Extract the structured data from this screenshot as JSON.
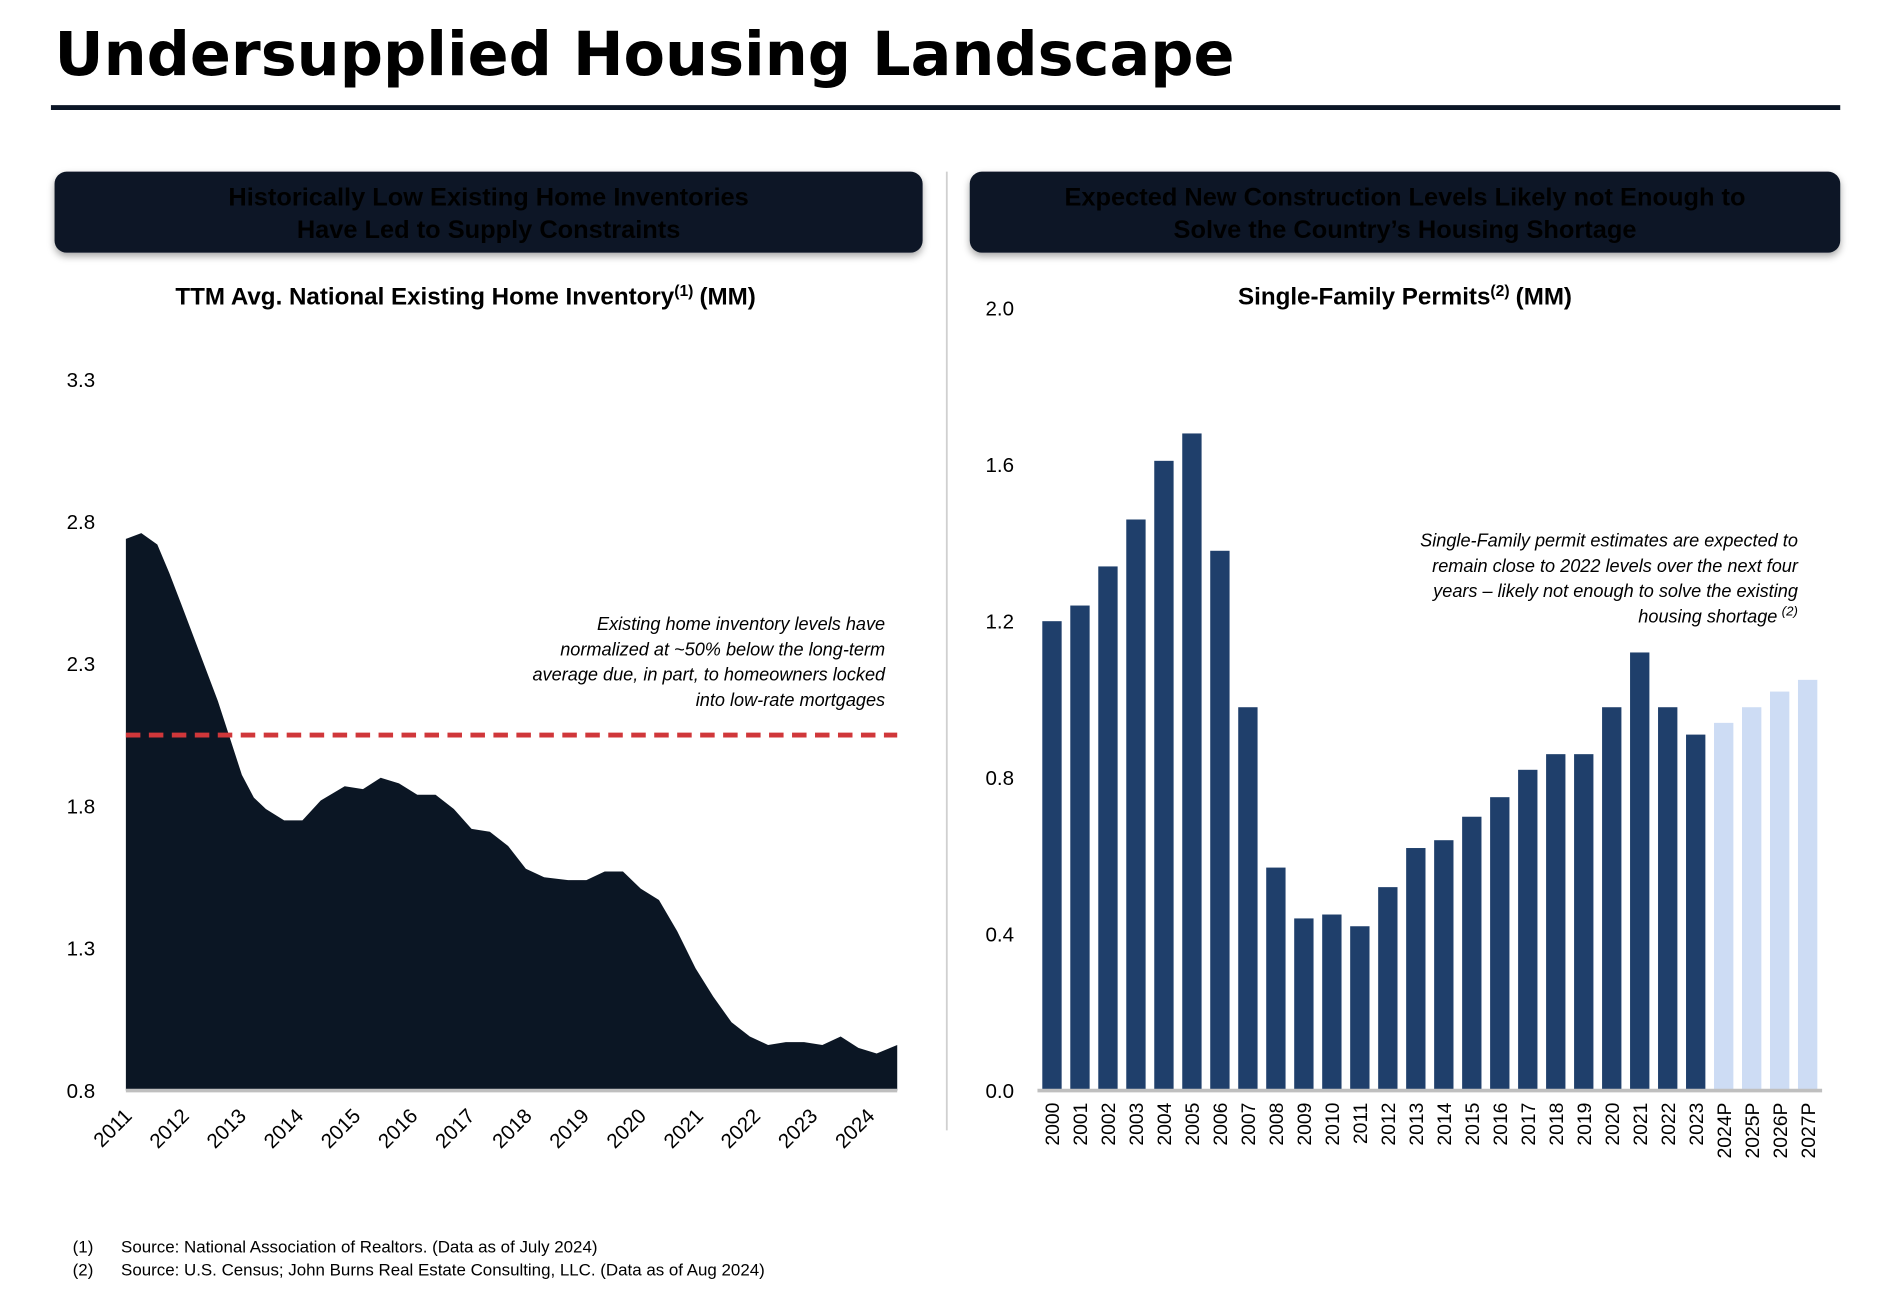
{
  "header": {
    "title": "Undersupplied Housing Landscape"
  },
  "panels": [
    {
      "heading": [
        "Historically Low Existing Home Inventories",
        "Have Led to Supply Constraints"
      ]
    },
    {
      "heading": [
        "Expected New Construction Levels Likely not Enough to",
        "Solve the Country’s Housing Shortage"
      ]
    }
  ],
  "chart_data": [
    {
      "type": "area",
      "title": "TTM Avg. National Existing Home Inventory",
      "title_note": "(1)",
      "title_unit": "(MM)",
      "x": [
        2011.0,
        2011.27,
        2011.55,
        2011.76,
        2011.97,
        2012.29,
        2012.61,
        2012.82,
        2013.03,
        2013.24,
        2013.45,
        2013.77,
        2014.09,
        2014.41,
        2014.83,
        2015.15,
        2015.46,
        2015.78,
        2016.1,
        2016.42,
        2016.74,
        2017.05,
        2017.37,
        2017.69,
        2018.0,
        2018.32,
        2018.74,
        2019.06,
        2019.38,
        2019.7,
        2020.01,
        2020.33,
        2020.65,
        2020.97,
        2021.28,
        2021.6,
        2021.92,
        2022.24,
        2022.55,
        2022.87,
        2023.19,
        2023.51,
        2023.82,
        2024.14,
        2024.5
      ],
      "values": [
        2.74,
        2.76,
        2.72,
        2.62,
        2.51,
        2.34,
        2.17,
        2.04,
        1.91,
        1.83,
        1.79,
        1.75,
        1.75,
        1.82,
        1.87,
        1.86,
        1.9,
        1.88,
        1.84,
        1.84,
        1.79,
        1.72,
        1.71,
        1.66,
        1.58,
        1.55,
        1.54,
        1.54,
        1.57,
        1.57,
        1.51,
        1.47,
        1.36,
        1.23,
        1.13,
        1.04,
        0.99,
        0.96,
        0.97,
        0.97,
        0.96,
        0.99,
        0.95,
        0.93,
        0.96
      ],
      "color": "#0b1624",
      "xlim": [
        2011,
        2024.5
      ],
      "xticks": [
        2011,
        2012,
        2013,
        2014,
        2015,
        2016,
        2017,
        2018,
        2019,
        2020,
        2021,
        2022,
        2023,
        2024
      ],
      "ylim": [
        0.8,
        3.3
      ],
      "yticks": [
        0.8,
        1.3,
        1.8,
        2.3,
        2.8,
        3.3
      ],
      "reference_line": 2.05,
      "reference_color": "#d0373a",
      "annotation": [
        "Existing home inventory levels have",
        "normalized at ~50% below the long-term",
        "average due, in part, to homeowners locked",
        "into low-rate mortgages"
      ]
    },
    {
      "type": "bar",
      "title": "Single-Family Permits",
      "title_note": "(2)",
      "title_unit": "(MM)",
      "categories": [
        "2000",
        "2001",
        "2002",
        "2003",
        "2004",
        "2005",
        "2006",
        "2007",
        "2008",
        "2009",
        "2010",
        "2011",
        "2012",
        "2013",
        "2014",
        "2015",
        "2016",
        "2017",
        "2018",
        "2019",
        "2020",
        "2021",
        "2022",
        "2023",
        "2024P",
        "2025P",
        "2026P",
        "2027P"
      ],
      "values": [
        1.2,
        1.24,
        1.34,
        1.46,
        1.61,
        1.68,
        1.38,
        0.98,
        0.57,
        0.44,
        0.45,
        0.42,
        0.52,
        0.62,
        0.64,
        0.7,
        0.75,
        0.82,
        0.86,
        0.86,
        0.98,
        1.12,
        0.98,
        0.91,
        0.94,
        0.98,
        1.02,
        1.05
      ],
      "colors": [
        "#1f3f6b",
        "#1f3f6b",
        "#1f3f6b",
        "#1f3f6b",
        "#1f3f6b",
        "#1f3f6b",
        "#1f3f6b",
        "#1f3f6b",
        "#1f3f6b",
        "#1f3f6b",
        "#1f3f6b",
        "#1f3f6b",
        "#1f3f6b",
        "#1f3f6b",
        "#1f3f6b",
        "#1f3f6b",
        "#1f3f6b",
        "#1f3f6b",
        "#1f3f6b",
        "#1f3f6b",
        "#1f3f6b",
        "#1f3f6b",
        "#1f3f6b",
        "#1f3f6b",
        "#cddcf4",
        "#cddcf4",
        "#cddcf4",
        "#cddcf4"
      ],
      "ylim": [
        0,
        2.0
      ],
      "yticks": [
        {
          "value": 0,
          "label": "0.0"
        },
        0.4,
        0.8,
        1.2,
        1.6,
        {
          "value": 2,
          "label": "2.0"
        }
      ],
      "annotation": [
        "Single-Family permit estimates are expected to",
        "remain close to 2022 levels over the next four",
        "years – likely not enough to solve the existing",
        "housing shortage"
      ],
      "annotation_note": "(2)"
    }
  ],
  "footnotes": [
    {
      "marker": "(1)",
      "text": "Source: National Association of Realtors. (Data as of July 2024)"
    },
    {
      "marker": "(2)",
      "text": "Source: U.S. Census; John Burns Real Estate Consulting, LLC. (Data as of Aug 2024)"
    }
  ]
}
